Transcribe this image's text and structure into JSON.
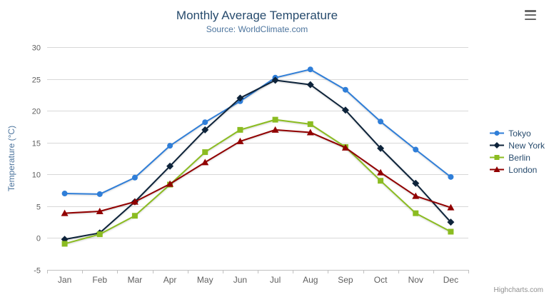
{
  "header": {
    "title": "Monthly Average Temperature",
    "subtitle": "Source: WorldClimate.com"
  },
  "credits": "Highcharts.com",
  "context_menu_icon": "hamburger-icon",
  "chart_data": {
    "type": "line",
    "title": "Monthly Average Temperature",
    "subtitle": "Source: WorldClimate.com",
    "categories": [
      "Jan",
      "Feb",
      "Mar",
      "Apr",
      "May",
      "Jun",
      "Jul",
      "Aug",
      "Sep",
      "Oct",
      "Nov",
      "Dec"
    ],
    "series": [
      {
        "name": "Tokyo",
        "color": "#2f7ed8",
        "marker": "circle",
        "values": [
          7.0,
          6.9,
          9.5,
          14.5,
          18.2,
          21.5,
          25.2,
          26.5,
          23.3,
          18.3,
          13.9,
          9.6
        ]
      },
      {
        "name": "New York",
        "color": "#0d233a",
        "marker": "diamond",
        "values": [
          -0.2,
          0.8,
          5.7,
          11.3,
          17.0,
          22.0,
          24.8,
          24.1,
          20.1,
          14.1,
          8.6,
          2.5
        ]
      },
      {
        "name": "Berlin",
        "color": "#8bbc21",
        "marker": "square",
        "values": [
          -0.9,
          0.6,
          3.5,
          8.4,
          13.5,
          17.0,
          18.6,
          17.9,
          14.3,
          9.0,
          3.9,
          1.0
        ]
      },
      {
        "name": "London",
        "color": "#910000",
        "marker": "triangle",
        "values": [
          3.9,
          4.2,
          5.7,
          8.5,
          11.9,
          15.2,
          17.0,
          16.6,
          14.2,
          10.3,
          6.6,
          4.8
        ]
      }
    ],
    "xlabel": "",
    "ylabel": "Temperature (°C)",
    "ylim": [
      -5,
      30
    ],
    "yticks": [
      -5,
      0,
      5,
      10,
      15,
      20,
      25,
      30
    ],
    "grid": true,
    "legend_position": "right",
    "colors": {
      "grid_line": "#d8d8d8",
      "axis_line": "#c0c0c0",
      "tick_label": "#606060",
      "axis_title": "#4d759e",
      "title": "#274b6d",
      "subtitle": "#4d759e",
      "legend_text": "#274b6d",
      "credits": "#909090"
    }
  }
}
